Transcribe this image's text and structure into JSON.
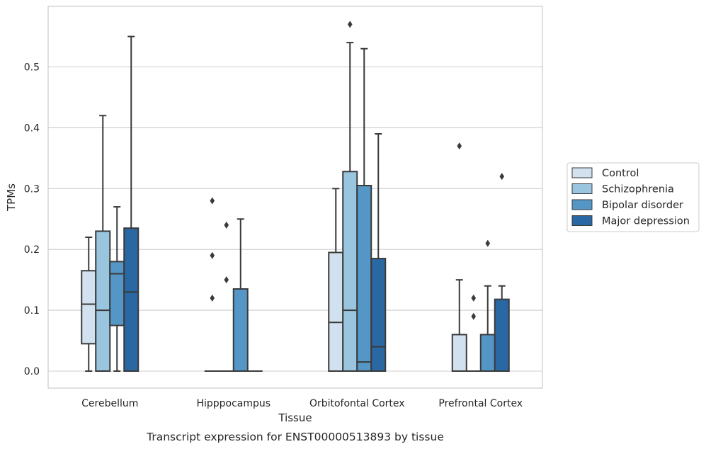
{
  "caption": "Transcript expression for ENST00000513893 by tissue",
  "chart_data": {
    "type": "box",
    "xlabel": "Tissue",
    "ylabel": "TPMs",
    "ylim": [
      -0.028,
      0.602
    ],
    "yticks": [
      "0.0",
      "0.1",
      "0.2",
      "0.3",
      "0.4",
      "0.5"
    ],
    "grid": "horizontal",
    "legend_position": "right",
    "categories": [
      "Cerebellum",
      "Hipppocampus",
      "Orbitofontal Cortex",
      "Prefrontal Cortex"
    ],
    "series": [
      {
        "name": "Control",
        "color": "#d1e1ef",
        "boxes": [
          {
            "whislo": 0.0,
            "q1": 0.045,
            "med": 0.11,
            "q3": 0.165,
            "whishi": 0.22,
            "fliers": []
          },
          {
            "whislo": 0.0,
            "q1": 0.0,
            "med": 0.0,
            "q3": 0.0,
            "whishi": 0.0,
            "fliers": [
              0.12,
              0.19,
              0.28
            ]
          },
          {
            "whislo": 0.0,
            "q1": 0.0,
            "med": 0.08,
            "q3": 0.195,
            "whishi": 0.3,
            "fliers": []
          },
          {
            "whislo": 0.0,
            "q1": 0.0,
            "med": 0.0,
            "q3": 0.06,
            "whishi": 0.15,
            "fliers": [
              0.37
            ]
          }
        ]
      },
      {
        "name": "Schizophrenia",
        "color": "#9ac5de",
        "boxes": [
          {
            "whislo": 0.0,
            "q1": 0.0,
            "med": 0.1,
            "q3": 0.23,
            "whishi": 0.42,
            "fliers": []
          },
          {
            "whislo": 0.0,
            "q1": 0.0,
            "med": 0.0,
            "q3": 0.0,
            "whishi": 0.0,
            "fliers": [
              0.15,
              0.24
            ]
          },
          {
            "whislo": 0.0,
            "q1": 0.0,
            "med": 0.1,
            "q3": 0.328,
            "whishi": 0.54,
            "fliers": [
              0.57
            ]
          },
          {
            "whislo": 0.0,
            "q1": 0.0,
            "med": 0.0,
            "q3": 0.0,
            "whishi": 0.0,
            "fliers": [
              0.09,
              0.12
            ]
          }
        ]
      },
      {
        "name": "Bipolar disorder",
        "color": "#5497c6",
        "boxes": [
          {
            "whislo": 0.0,
            "q1": 0.075,
            "med": 0.16,
            "q3": 0.18,
            "whishi": 0.27,
            "fliers": []
          },
          {
            "whislo": 0.0,
            "q1": 0.0,
            "med": 0.0,
            "q3": 0.135,
            "whishi": 0.25,
            "fliers": []
          },
          {
            "whislo": 0.0,
            "q1": 0.0,
            "med": 0.015,
            "q3": 0.305,
            "whishi": 0.53,
            "fliers": []
          },
          {
            "whislo": 0.0,
            "q1": 0.0,
            "med": 0.0,
            "q3": 0.06,
            "whishi": 0.14,
            "fliers": [
              0.21
            ]
          }
        ]
      },
      {
        "name": "Major depression",
        "color": "#2a68a3",
        "boxes": [
          {
            "whislo": 0.0,
            "q1": 0.0,
            "med": 0.13,
            "q3": 0.235,
            "whishi": 0.55,
            "fliers": []
          },
          {
            "whislo": 0.0,
            "q1": 0.0,
            "med": 0.0,
            "q3": 0.0,
            "whishi": 0.0,
            "fliers": []
          },
          {
            "whislo": 0.0,
            "q1": 0.0,
            "med": 0.04,
            "q3": 0.185,
            "whishi": 0.39,
            "fliers": []
          },
          {
            "whislo": 0.0,
            "q1": 0.0,
            "med": 0.0,
            "q3": 0.118,
            "whishi": 0.14,
            "fliers": [
              0.32
            ]
          }
        ]
      }
    ]
  }
}
